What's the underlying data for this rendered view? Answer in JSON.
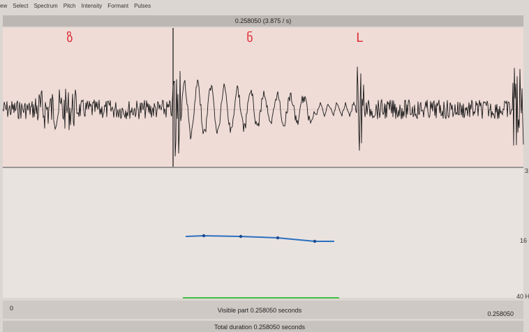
{
  "menu": [
    "ew",
    "Select",
    "Spectrum",
    "Pitch",
    "Intensity",
    "Formant",
    "Pulses"
  ],
  "window_bar": "0.258050 (3.875 / s)",
  "segments": [
    "ზ",
    "ნ",
    "Լ"
  ],
  "pitch_axis": {
    "top": "3",
    "middle": "16",
    "bottom": "40 H"
  },
  "footer": {
    "start": "0",
    "visible": "Visible part 0.258050 seconds",
    "end": "0.258050",
    "total": "Total duration 0.258050 seconds"
  }
}
